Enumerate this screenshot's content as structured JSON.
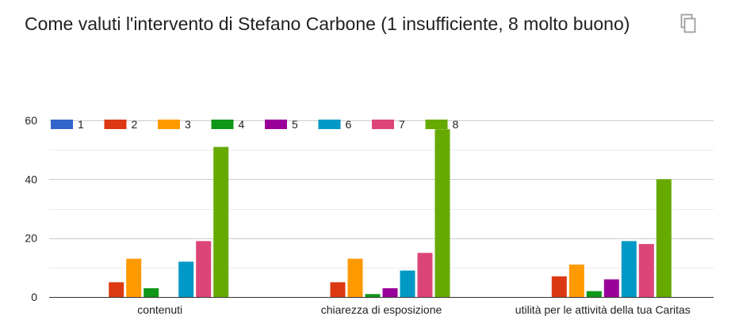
{
  "title": "Come valuti l'intervento di Stefano Carbone (1 insufficiente, 8 molto buono)",
  "copy_icon": "copy-icon",
  "chart_data": {
    "type": "bar",
    "categories": [
      "contenuti",
      "chiarezza di esposizione",
      "utilità per le attività della tua Caritas"
    ],
    "series": [
      {
        "name": "1",
        "color": "#3366cc",
        "values": [
          0,
          0,
          0
        ]
      },
      {
        "name": "2",
        "color": "#dc3912",
        "values": [
          5,
          5,
          7
        ]
      },
      {
        "name": "3",
        "color": "#ff9900",
        "values": [
          13,
          13,
          11
        ]
      },
      {
        "name": "4",
        "color": "#109618",
        "values": [
          3,
          1,
          2
        ]
      },
      {
        "name": "5",
        "color": "#990099",
        "values": [
          0,
          3,
          6
        ]
      },
      {
        "name": "6",
        "color": "#0099c6",
        "values": [
          12,
          9,
          19
        ]
      },
      {
        "name": "7",
        "color": "#dd4477",
        "values": [
          19,
          15,
          18
        ]
      },
      {
        "name": "8",
        "color": "#66aa00",
        "values": [
          51,
          57,
          40
        ]
      }
    ],
    "yticks": [
      "0",
      "20",
      "40",
      "60"
    ],
    "ylim": [
      0,
      60
    ],
    "grid": true,
    "legend_position": "top"
  }
}
